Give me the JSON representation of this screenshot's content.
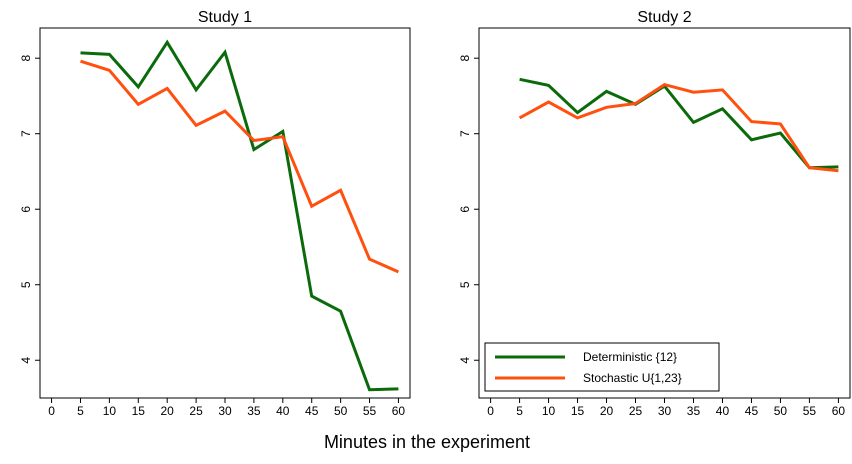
{
  "figure": {
    "xlabel": "Minutes in the experiment"
  },
  "chart_data": [
    {
      "type": "line",
      "title": "Study 1",
      "xlabel": "",
      "ylabel": "",
      "xlim": [
        -2,
        62
      ],
      "ylim": [
        3.5,
        8.4
      ],
      "xticks": [
        0,
        5,
        10,
        15,
        20,
        25,
        30,
        35,
        40,
        45,
        50,
        55,
        60
      ],
      "yticks": [
        4,
        5,
        6,
        7,
        8
      ],
      "grid": false,
      "x": [
        5,
        10,
        15,
        20,
        25,
        30,
        35,
        40,
        45,
        50,
        55,
        60
      ],
      "series": [
        {
          "name": "Deterministic {12}",
          "color": "#0b6b0b",
          "values": [
            8.07,
            8.05,
            7.62,
            8.21,
            7.58,
            8.08,
            6.79,
            7.03,
            4.85,
            4.65,
            3.61,
            3.62
          ]
        },
        {
          "name": "Stochastic U{1,23}",
          "color": "#ff5010",
          "values": [
            7.96,
            7.84,
            7.39,
            7.6,
            7.11,
            7.3,
            6.91,
            6.96,
            6.04,
            6.25,
            5.34,
            5.17
          ]
        }
      ],
      "legend": null
    },
    {
      "type": "line",
      "title": "Study 2",
      "xlabel": "",
      "ylabel": "",
      "xlim": [
        -2,
        62
      ],
      "ylim": [
        3.5,
        8.4
      ],
      "xticks": [
        0,
        5,
        10,
        15,
        20,
        25,
        30,
        35,
        40,
        45,
        50,
        55,
        60
      ],
      "yticks": [
        4,
        5,
        6,
        7,
        8
      ],
      "grid": false,
      "x": [
        5,
        10,
        15,
        20,
        25,
        30,
        35,
        40,
        45,
        50,
        55,
        60
      ],
      "series": [
        {
          "name": "Deterministic {12}",
          "color": "#0b6b0b",
          "values": [
            7.72,
            7.64,
            7.28,
            7.56,
            7.39,
            7.63,
            7.15,
            7.33,
            6.92,
            7.01,
            6.55,
            6.56
          ]
        },
        {
          "name": "Stochastic U{1,23}",
          "color": "#ff5010",
          "values": [
            7.21,
            7.42,
            7.21,
            7.35,
            7.4,
            7.65,
            7.55,
            7.58,
            7.16,
            7.13,
            6.55,
            6.51
          ]
        }
      ],
      "legend": {
        "placement": "bottom-left",
        "entries": [
          "Deterministic {12}",
          "Stochastic U{1,23}"
        ]
      }
    }
  ]
}
